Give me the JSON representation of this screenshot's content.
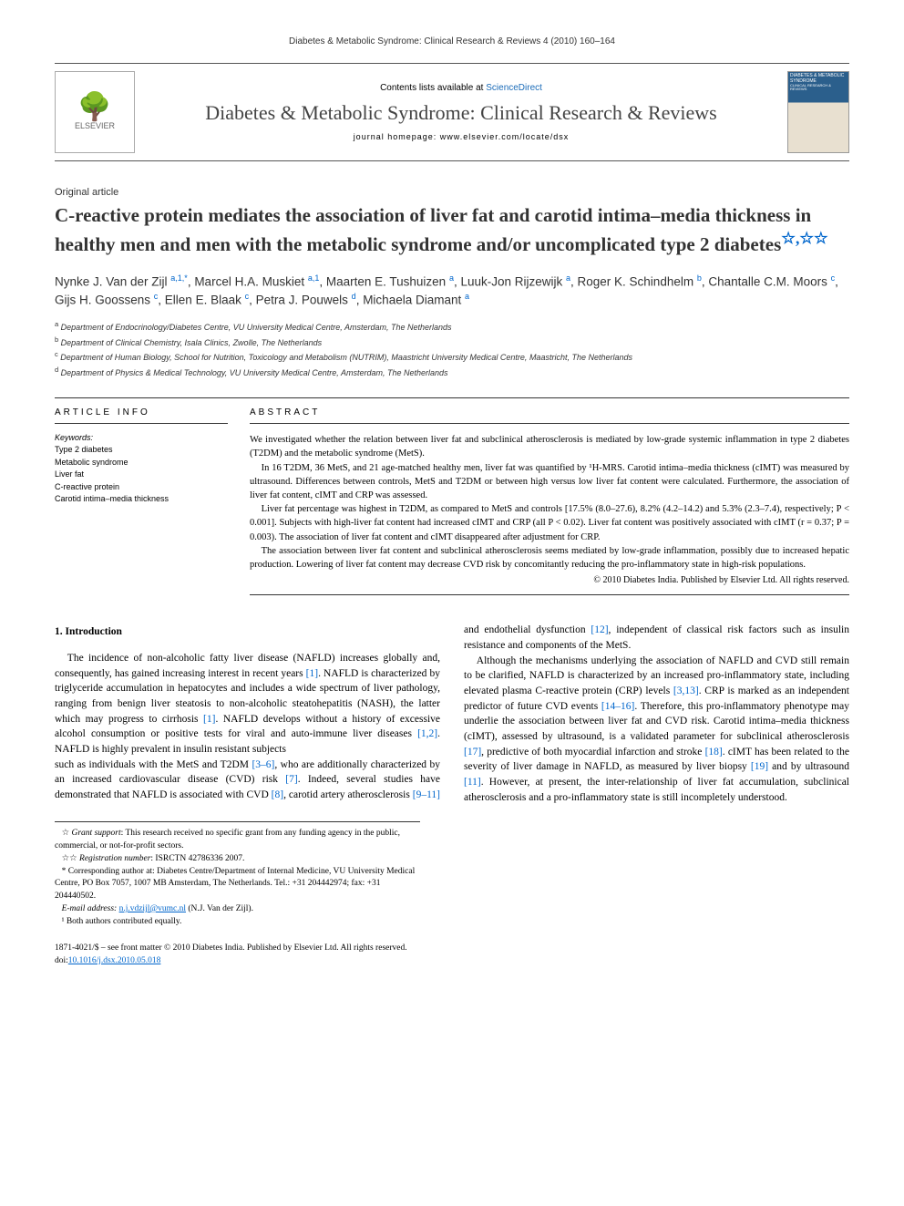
{
  "running_head": "Diabetes & Metabolic Syndrome: Clinical Research & Reviews 4 (2010) 160–164",
  "masthead": {
    "contents_prefix": "Contents lists available at ",
    "contents_link": "ScienceDirect",
    "journal_name": "Diabetes & Metabolic Syndrome: Clinical Research & Reviews",
    "homepage_prefix": "journal homepage: ",
    "homepage_url": "www.elsevier.com/locate/dsx",
    "publisher": "ELSEVIER",
    "cover_text_top": "DIABETES & METABOLIC SYNDROME",
    "cover_text_sub": "CLINICAL RESEARCH & REVIEWS"
  },
  "article_type": "Original article",
  "title": "C-reactive protein mediates the association of liver fat and carotid intima–media thickness in healthy men and men with the metabolic syndrome and/or uncomplicated type 2 diabetes",
  "title_stars": "☆,☆☆",
  "authors": "Nynke J. Van der Zijl <sup>a,1,*</sup>, Marcel H.A. Muskiet <sup>a,1</sup>, Maarten E. Tushuizen <sup>a</sup>, Luuk-Jon Rijzewijk <sup>a</sup>, Roger K. Schindhelm <sup>b</sup>, Chantalle C.M. Moors <sup>c</sup>, Gijs H. Goossens <sup>c</sup>, Ellen E. Blaak <sup>c</sup>, Petra J. Pouwels <sup>d</sup>, Michaela Diamant <sup>a</sup>",
  "affiliations": [
    "a Department of Endocrinology/Diabetes Centre, VU University Medical Centre, Amsterdam, The Netherlands",
    "b Department of Clinical Chemistry, Isala Clinics, Zwolle, The Netherlands",
    "c Department of Human Biology, School for Nutrition, Toxicology and Metabolism (NUTRIM), Maastricht University Medical Centre, Maastricht, The Netherlands",
    "d Department of Physics & Medical Technology, VU University Medical Centre, Amsterdam, The Netherlands"
  ],
  "info_head": "ARTICLE INFO",
  "keywords_label": "Keywords:",
  "keywords": [
    "Type 2 diabetes",
    "Metabolic syndrome",
    "Liver fat",
    "C-reactive protein",
    "Carotid intima–media thickness"
  ],
  "abstract_head": "ABSTRACT",
  "abstract_paragraphs": [
    "We investigated whether the relation between liver fat and subclinical atherosclerosis is mediated by low-grade systemic inflammation in type 2 diabetes (T2DM) and the metabolic syndrome (MetS).",
    "In 16 T2DM, 36 MetS, and 21 age-matched healthy men, liver fat was quantified by ¹H-MRS. Carotid intima–media thickness (cIMT) was measured by ultrasound. Differences between controls, MetS and T2DM or between high versus low liver fat content were calculated. Furthermore, the association of liver fat content, cIMT and CRP was assessed.",
    "Liver fat percentage was highest in T2DM, as compared to MetS and controls [17.5% (8.0–27.6), 8.2% (4.2–14.2) and 5.3% (2.3–7.4), respectively; P < 0.001]. Subjects with high-liver fat content had increased cIMT and CRP (all P < 0.02). Liver fat content was positively associated with cIMT (r = 0.37; P = 0.003). The association of liver fat content and cIMT disappeared after adjustment for CRP.",
    "The association between liver fat content and subclinical atherosclerosis seems mediated by low-grade inflammation, possibly due to increased hepatic production. Lowering of liver fat content may decrease CVD risk by concomitantly reducing the pro-inflammatory state in high-risk populations."
  ],
  "copyright": "© 2010 Diabetes India. Published by Elsevier Ltd. All rights reserved.",
  "section_head": "1. Introduction",
  "body_p1": "The incidence of non-alcoholic fatty liver disease (NAFLD) increases globally and, consequently, has gained increasing interest in recent years [1]. NAFLD is characterized by triglyceride accumulation in hepatocytes and includes a wide spectrum of liver pathology, ranging from benign liver steatosis to non-alcoholic steatohepatitis (NASH), the latter which may progress to cirrhosis [1]. NAFLD develops without a history of excessive alcohol consumption or positive tests for viral and auto-immune liver diseases [1,2]. NAFLD is highly prevalent in insulin resistant subjects",
  "body_p2": "such as individuals with the MetS and T2DM [3–6], who are additionally characterized by an increased cardiovascular disease (CVD) risk [7]. Indeed, several studies have demonstrated that NAFLD is associated with CVD [8], carotid artery atherosclerosis [9–11] and endothelial dysfunction [12], independent of classical risk factors such as insulin resistance and components of the MetS.",
  "body_p3": "Although the mechanisms underlying the association of NAFLD and CVD still remain to be clarified, NAFLD is characterized by an increased pro-inflammatory state, including elevated plasma C-reactive protein (CRP) levels [3,13]. CRP is marked as an independent predictor of future CVD events [14–16]. Therefore, this pro-inflammatory phenotype may underlie the association between liver fat and CVD risk. Carotid intima–media thickness (cIMT), assessed by ultrasound, is a validated parameter for subclinical atherosclerosis [17], predictive of both myocardial infarction and stroke [18]. cIMT has been related to the severity of liver damage in NAFLD, as measured by liver biopsy [19] and by ultrasound [11]. However, at present, the inter-relationship of liver fat accumulation, subclinical atherosclerosis and a pro-inflammatory state is still incompletely understood.",
  "footnotes": {
    "grant": "☆ Grant support: This research received no specific grant from any funding agency in the public, commercial, or not-for-profit sectors.",
    "reg": "☆☆ Registration number: ISRCTN 42786336 2007.",
    "corr": "* Corresponding author at: Diabetes Centre/Department of Internal Medicine, VU University Medical Centre, PO Box 7057, 1007 MB Amsterdam, The Netherlands. Tel.: +31 204442974; fax: +31 204440502.",
    "email_label": "E-mail address: ",
    "email": "n.j.vdzijl@vumc.nl",
    "email_suffix": " (N.J. Van der Zijl).",
    "equal": "¹ Both authors contributed equally."
  },
  "footer": {
    "front": "1871-4021/$ – see front matter © 2010 Diabetes India. Published by Elsevier Ltd. All rights reserved.",
    "doi_prefix": "doi:",
    "doi": "10.1016/j.dsx.2010.05.018"
  },
  "colors": {
    "link": "#0066cc",
    "rule": "#333333",
    "logo_border": "#aaaaaa",
    "cover_top": "#2b5f8c",
    "cover_bottom": "#e8e0d0"
  }
}
